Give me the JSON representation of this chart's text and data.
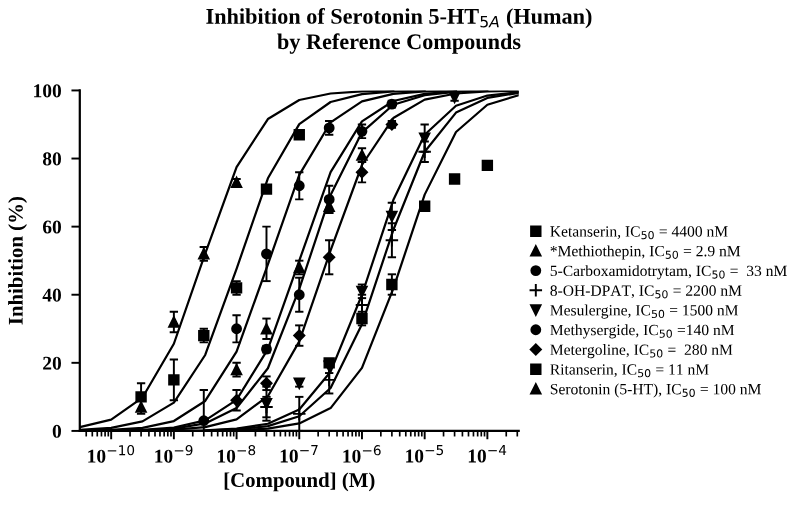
{
  "chart_data": {
    "type": "scatter",
    "title": "Inhibition of Serotonin 5-HT$_{5A}$ (Human)\nby Reference Compounds",
    "xlabel": "[Compound] (M)",
    "ylabel": "Inhibition (%)",
    "log": "x",
    "xlim": [
      3.16e-11,
      0.000316
    ],
    "ylim": [
      0,
      100
    ],
    "xticks": [
      {
        "value": 1e-10,
        "label": "10$^{−10}$"
      },
      {
        "value": 1e-09,
        "label": "10$^{−9}$"
      },
      {
        "value": 1e-08,
        "label": "10$^{−8}$"
      },
      {
        "value": 1e-07,
        "label": "10$^{−7}$"
      },
      {
        "value": 1e-06,
        "label": "10$^{−6}$"
      },
      {
        "value": 1e-05,
        "label": "10$^{−5}$"
      },
      {
        "value": 0.0001,
        "label": "10$^{−4}$"
      }
    ],
    "yticks": [
      0,
      20,
      40,
      60,
      80,
      100
    ],
    "legend": "right",
    "series": [
      {
        "name": "Ketanserin, IC$_{50}$ = 4400 nM",
        "color": "#000000",
        "marker": "square",
        "x": [
          3e-07,
          1e-06,
          3e-06,
          1e-05,
          3e-05,
          0.0001
        ],
        "values": [
          20,
          33,
          43,
          66,
          74,
          78
        ],
        "errors": [
          null,
          2,
          3,
          null,
          null,
          null
        ]
      },
      {
        "name": "*Methiothepin, IC$_{50}$ = 2.9 nM",
        "color": "#000000",
        "marker": "triangle",
        "x": [
          3e-10,
          1e-09,
          3e-09,
          1e-08
        ],
        "values": [
          7,
          32,
          52,
          73
        ],
        "errors": [
          2,
          3,
          2,
          1
        ]
      },
      {
        "name": "5-Carboxamidotrytam, IC$_{50}$ =  33 nM",
        "color": "#000000",
        "marker": "circle",
        "x": [
          3e-09,
          1e-08,
          3e-08,
          1e-07,
          3e-07
        ],
        "values": [
          3,
          30,
          52,
          72,
          89
        ],
        "errors": [
          9,
          4,
          8,
          4,
          2
        ]
      },
      {
        "name": "8-OH-DPAT, IC$_{50}$ = 2200 nM",
        "color": "#000000",
        "marker": "cross",
        "x": [
          3e-08,
          1e-07,
          3e-07,
          1e-06,
          3e-06,
          1e-05
        ],
        "values": [
          7,
          5,
          15,
          37,
          56,
          82
        ],
        "errors": [
          3,
          5,
          4,
          3,
          5,
          3
        ]
      },
      {
        "name": "Mesulergine, IC$_{50}$ = 1500 nM",
        "color": "#000000",
        "marker": "triangle_down",
        "x": [
          3e-08,
          1e-07,
          3e-07,
          1e-06,
          3e-06,
          1e-05,
          3e-05
        ],
        "values": [
          8,
          14,
          19,
          41,
          63,
          86,
          98
        ],
        "errors": [
          5,
          1,
          2,
          2,
          4,
          4,
          1
        ]
      },
      {
        "name": "Methysergide, IC$_{50}$ =140 nM",
        "color": "#000000",
        "marker": "circle",
        "x": [
          3e-08,
          1e-07,
          3e-07,
          1e-06,
          3e-06
        ],
        "values": [
          24,
          40,
          68,
          88,
          96
        ],
        "errors": [
          1,
          5,
          4,
          2,
          1
        ]
      },
      {
        "name": "Metergoline, IC$_{50}$ =  280 nM",
        "color": "#000000",
        "marker": "diamond",
        "x": [
          1e-08,
          3e-08,
          1e-07,
          3e-07,
          1e-06,
          3e-06
        ],
        "values": [
          9,
          14,
          28,
          51,
          76,
          90
        ],
        "errors": [
          3,
          2,
          3,
          5,
          3,
          1
        ]
      },
      {
        "name": "Ritanserin, IC$_{50}$ = 11 nM",
        "color": "#000000",
        "marker": "square",
        "x": [
          3e-10,
          1e-09,
          3e-09,
          1e-08,
          3e-08,
          1e-07
        ],
        "values": [
          10,
          15,
          28,
          42,
          71,
          87
        ],
        "errors": [
          4,
          6,
          2,
          2,
          1,
          1
        ]
      },
      {
        "name": "Serotonin (5-HT), IC$_{50}$ = 100 nM",
        "color": "#000000",
        "marker": "triangle",
        "x": [
          1e-08,
          3e-08,
          1e-07,
          3e-07,
          1e-06
        ],
        "values": [
          18,
          30,
          48,
          66,
          81
        ],
        "errors": [
          2,
          3,
          2,
          2,
          2
        ]
      },
      {
        "type": "line",
        "color": "#000000",
        "marker": "none",
        "x": [
          3.16e-11,
          1e-10,
          3.16e-10,
          1e-09,
          3.16e-09,
          1e-08,
          3.16e-08,
          1e-07,
          3.16e-07,
          1e-06,
          3.16e-06
        ],
        "values": [
          1.1,
          3.3,
          9.8,
          25.6,
          52.1,
          77.5,
          91.6,
          97.2,
          99.1,
          99.7,
          99.9
        ]
      },
      {
        "type": "line",
        "color": "#000000",
        "marker": "none",
        "x": [
          3.16e-11,
          1e-10,
          3.16e-10,
          1e-09,
          3.16e-09,
          1e-08,
          3.16e-08,
          1e-07,
          3.16e-07,
          1e-06,
          3.16e-06,
          1e-05
        ],
        "values": [
          0.3,
          0.9,
          2.8,
          8.3,
          22.3,
          47.6,
          74.2,
          90.1,
          96.6,
          98.9,
          99.7,
          99.9
        ]
      },
      {
        "type": "line",
        "color": "#000000",
        "marker": "none",
        "x": [
          3.16e-11,
          1e-10,
          3.16e-10,
          1e-09,
          3.16e-09,
          1e-08,
          3.16e-08,
          1e-07,
          3.16e-07,
          1e-06,
          3.16e-06,
          1e-05,
          3.16e-05
        ],
        "values": [
          0.1,
          0.3,
          0.9,
          2.9,
          8.8,
          23.3,
          48.9,
          75.2,
          90.6,
          96.8,
          99.0,
          99.7,
          99.9
        ]
      },
      {
        "type": "line",
        "color": "#000000",
        "marker": "none",
        "x": [
          1e-10,
          3.16e-10,
          1e-09,
          3.16e-09,
          1e-08,
          3.16e-08,
          1e-07,
          3.16e-07,
          1e-06,
          3.16e-06,
          1e-05,
          3.16e-05,
          0.0001
        ],
        "values": [
          0.1,
          0.3,
          1.0,
          3.1,
          9.1,
          24.0,
          50,
          76.0,
          90.9,
          96.9,
          99.0,
          99.7,
          99.9
        ]
      },
      {
        "type": "line",
        "color": "#000000",
        "marker": "none",
        "x": [
          3.16e-10,
          1e-09,
          3.16e-09,
          1e-08,
          3.16e-08,
          1e-07,
          3.16e-07,
          1e-06,
          3.16e-06,
          1e-05,
          3.16e-05
        ],
        "values": [
          0.2,
          0.7,
          2.2,
          6.7,
          18.4,
          41.7,
          69.3,
          87.7,
          95.8,
          98.6,
          99.6
        ]
      },
      {
        "type": "line",
        "color": "#000000",
        "marker": "none",
        "x": [
          3.16e-10,
          1e-09,
          3.16e-09,
          1e-08,
          3.16e-08,
          1e-07,
          3.16e-07,
          1e-06,
          3.16e-06,
          1e-05,
          3.16e-05,
          0.0001,
          0.000316
        ],
        "values": [
          0.1,
          0.4,
          1.1,
          3.4,
          10.2,
          26.3,
          53.0,
          78.1,
          91.9,
          97.3,
          99.1,
          99.7,
          99.9
        ]
      },
      {
        "type": "line",
        "color": "#000000",
        "marker": "none",
        "x": [
          1e-09,
          3.16e-09,
          1e-08,
          3.16e-08,
          1e-07,
          3.16e-07,
          1e-06,
          3.16e-06,
          1e-05,
          3.16e-05,
          0.0001,
          0.000316
        ],
        "values": [
          0.1,
          0.2,
          0.7,
          2.1,
          6.3,
          17.4,
          40.0,
          67.8,
          87.0,
          95.5,
          98.5,
          99.5
        ]
      },
      {
        "type": "line",
        "color": "#000000",
        "marker": "none",
        "x": [
          3.16e-09,
          1e-08,
          3.16e-08,
          1e-07,
          3.16e-07,
          1e-06,
          3.16e-06,
          1e-05,
          3.16e-05,
          0.0001,
          0.000316
        ],
        "values": [
          0.1,
          0.5,
          1.4,
          4.3,
          12.6,
          31.3,
          59.0,
          82.0,
          93.5,
          97.8,
          99.3
        ]
      },
      {
        "type": "line",
        "color": "#000000",
        "marker": "none",
        "x": [
          1e-08,
          3.16e-08,
          1e-07,
          3.16e-07,
          1e-06,
          3.16e-06,
          1e-05,
          3.16e-05,
          0.0001,
          0.000316
        ],
        "values": [
          0.2,
          0.7,
          2.2,
          6.7,
          18.5,
          41.8,
          69.4,
          87.8,
          95.8,
          98.6
        ]
      }
    ]
  }
}
